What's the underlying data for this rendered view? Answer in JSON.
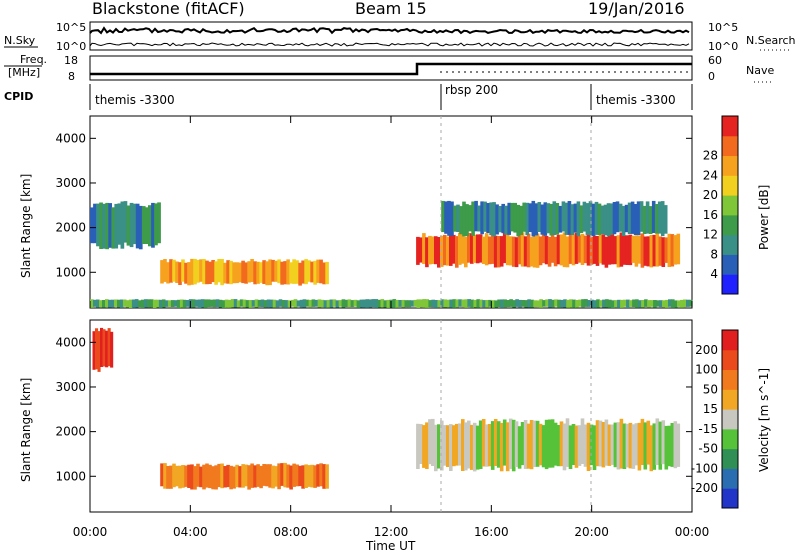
{
  "header": {
    "station": "Blackstone (fitACF)",
    "beam": "Beam 15",
    "date": "19/Jan/2016"
  },
  "status_panel": {
    "nsky_label": "N.Sky",
    "nsearch_label": "N.Search",
    "nsky_top": "10^5",
    "nsky_bottom": "10^0",
    "freq_label": "Freq.",
    "freq_unit": "[MHz]",
    "freq_top": "18",
    "freq_bottom": "8",
    "nave_label": "Nave",
    "nave_top": "60",
    "nave_bottom": "0",
    "cpid_label": "CPID",
    "cpid_segments": [
      {
        "label": "themis -3300",
        "start_hour": 0
      },
      {
        "label": "rbsp 200",
        "start_hour": 14
      },
      {
        "label": "themis -3300",
        "start_hour": 20
      }
    ]
  },
  "chart_data": [
    {
      "type": "heatmap",
      "quantity": "power",
      "ylabel": "Slant Range [km]",
      "xlabel": "Time UT",
      "x_ticks": [
        "00:00",
        "04:00",
        "08:00",
        "12:00",
        "16:00",
        "20:00",
        "00:00"
      ],
      "xlim_hours": [
        0,
        24
      ],
      "ylim": [
        200,
        4500
      ],
      "y_ticks": [
        1000,
        2000,
        3000,
        4000
      ],
      "colorbar": {
        "label": "Power [dB]",
        "ticks": [
          "4",
          "8",
          "12",
          "16",
          "20",
          "24",
          "28"
        ],
        "colors": [
          "#1f22ff",
          "#2a5fb8",
          "#3a8f86",
          "#3d9b4a",
          "#7fc639",
          "#f2d020",
          "#f7a21e",
          "#f26a1e",
          "#e52320"
        ]
      },
      "regions": [
        {
          "name": "early morning scatter",
          "t_start": 0.0,
          "t_end": 2.8,
          "r_min": 1500,
          "r_max": 2600,
          "power": 8
        },
        {
          "name": "morning main echo",
          "t_start": 2.8,
          "t_end": 9.5,
          "r_min": 700,
          "r_max": 1300,
          "power": 24
        },
        {
          "name": "near-range band",
          "t_start": 0.0,
          "t_end": 24.0,
          "r_min": 200,
          "r_max": 400,
          "power": 12
        },
        {
          "name": "afternoon main echo",
          "t_start": 13.0,
          "t_end": 23.5,
          "r_min": 1100,
          "r_max": 1900,
          "power": 28
        },
        {
          "name": "afternoon upper scatter",
          "t_start": 14.0,
          "t_end": 23.0,
          "r_min": 1800,
          "r_max": 2600,
          "power": 8
        }
      ]
    },
    {
      "type": "heatmap",
      "quantity": "velocity",
      "ylabel": "Slant Range [km]",
      "xlabel": "Time UT",
      "x_ticks": [
        "00:00",
        "04:00",
        "08:00",
        "12:00",
        "16:00",
        "20:00",
        "00:00"
      ],
      "xlim_hours": [
        0,
        24
      ],
      "ylim": [
        200,
        4500
      ],
      "y_ticks": [
        1000,
        2000,
        3000,
        4000
      ],
      "colorbar": {
        "label": "Velocity [m s^-1]",
        "ticks": [
          "200",
          "100",
          "50",
          "15",
          "-15",
          "-50",
          "-100",
          "-200"
        ],
        "colors": [
          "#2136c8",
          "#2a6db0",
          "#2f8f55",
          "#56c23a",
          "#c8c8c0",
          "#f2a724",
          "#f27a1e",
          "#ea4a1c",
          "#e21f1f"
        ]
      },
      "regions": [
        {
          "name": "morning flow",
          "t_start": 2.8,
          "t_end": 9.5,
          "r_min": 700,
          "r_max": 1300,
          "velocity": -80
        },
        {
          "name": "afternoon ground scatter",
          "t_start": 13.0,
          "t_end": 23.5,
          "r_min": 1100,
          "r_max": 2300,
          "velocity": 0
        },
        {
          "name": "early high-range flow",
          "t_start": 0.1,
          "t_end": 0.9,
          "r_min": 3300,
          "r_max": 4400,
          "velocity": -180
        }
      ]
    }
  ]
}
